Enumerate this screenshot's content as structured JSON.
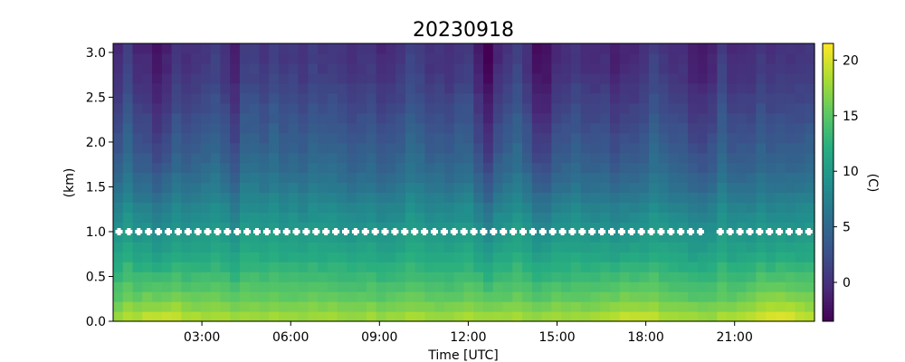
{
  "chart_data": {
    "type": "heatmap",
    "title": "20230918",
    "xlabel": "Time [UTC]",
    "ylabel": "(km)",
    "colorbar_label": "(C)",
    "xlim": [
      0,
      23.7
    ],
    "ylim": [
      0,
      3.1
    ],
    "x_ticks": [
      {
        "value": 3,
        "label": "03:00"
      },
      {
        "value": 6,
        "label": "06:00"
      },
      {
        "value": 9,
        "label": "09:00"
      },
      {
        "value": 12,
        "label": "12:00"
      },
      {
        "value": 15,
        "label": "15:00"
      },
      {
        "value": 18,
        "label": "18:00"
      },
      {
        "value": 21,
        "label": "21:00"
      }
    ],
    "y_ticks": [
      {
        "value": 0.0,
        "label": "0.0"
      },
      {
        "value": 0.5,
        "label": "0.5"
      },
      {
        "value": 1.0,
        "label": "1.0"
      },
      {
        "value": 1.5,
        "label": "1.5"
      },
      {
        "value": 2.0,
        "label": "2.0"
      },
      {
        "value": 2.5,
        "label": "2.5"
      },
      {
        "value": 3.0,
        "label": "3.0"
      }
    ],
    "colorbar": {
      "colormap": "viridis",
      "range": [
        -3.5,
        21.5
      ],
      "ticks": [
        {
          "value": 0,
          "label": "0"
        },
        {
          "value": 5,
          "label": "5"
        },
        {
          "value": 10,
          "label": "10"
        },
        {
          "value": 15,
          "label": "15"
        },
        {
          "value": 20,
          "label": "20"
        }
      ]
    },
    "temperature_profile": {
      "heights_km": [
        0.0,
        0.25,
        0.5,
        0.75,
        1.0,
        1.25,
        1.5,
        1.75,
        2.0,
        2.25,
        2.5,
        2.75,
        3.0
      ],
      "mean_temp_c": [
        18.5,
        15.5,
        13.5,
        11.5,
        10.0,
        8.5,
        6.5,
        5.0,
        4.0,
        3.0,
        2.0,
        1.0,
        0.5
      ]
    },
    "cold_periods_hours": [
      {
        "time": 1.5,
        "anomaly_c": -2.5
      },
      {
        "time": 4.0,
        "anomaly_c": -1.5
      },
      {
        "time": 12.6,
        "anomaly_c": -4.0
      },
      {
        "time": 14.6,
        "anomaly_c": -3.5
      },
      {
        "time": 17.3,
        "anomaly_c": -2.0
      },
      {
        "time": 19.8,
        "anomaly_c": -1.5
      }
    ],
    "warm_surface_periods_hours": [
      {
        "time": 1.7,
        "anomaly_c": 1.5
      },
      {
        "time": 17.5,
        "anomaly_c": 1.5
      },
      {
        "time": 22.5,
        "anomaly_c": 2.5
      }
    ],
    "markers": {
      "color": "#ffffff",
      "y": 1.0,
      "x_step_hours": 0.333,
      "gaps": [
        [
          19.9,
          20.5
        ]
      ]
    }
  }
}
